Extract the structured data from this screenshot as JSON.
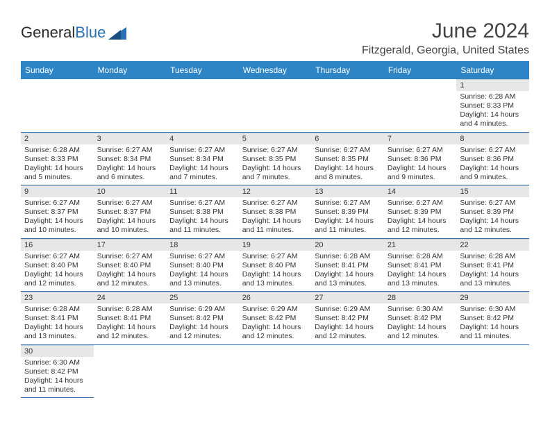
{
  "header": {
    "logo_word1": "General",
    "logo_word2": "Blue",
    "month_title": "June 2024",
    "location": "Fitzgerald, Georgia, United States"
  },
  "colors": {
    "header_bg": "#2d85c5",
    "header_text": "#ffffff",
    "border": "#2d6fb5",
    "daynum_bg": "#e7e7e7",
    "logo_accent": "#2d6fb5",
    "page_bg": "#ffffff",
    "text": "#333333"
  },
  "calendar": {
    "day_headers": [
      "Sunday",
      "Monday",
      "Tuesday",
      "Wednesday",
      "Thursday",
      "Friday",
      "Saturday"
    ],
    "weeks": [
      [
        {
          "n": "",
          "lines": []
        },
        {
          "n": "",
          "lines": []
        },
        {
          "n": "",
          "lines": []
        },
        {
          "n": "",
          "lines": []
        },
        {
          "n": "",
          "lines": []
        },
        {
          "n": "",
          "lines": []
        },
        {
          "n": "1",
          "lines": [
            "Sunrise: 6:28 AM",
            "Sunset: 8:33 PM",
            "Daylight: 14 hours and 4 minutes."
          ]
        }
      ],
      [
        {
          "n": "2",
          "lines": [
            "Sunrise: 6:28 AM",
            "Sunset: 8:33 PM",
            "Daylight: 14 hours and 5 minutes."
          ]
        },
        {
          "n": "3",
          "lines": [
            "Sunrise: 6:27 AM",
            "Sunset: 8:34 PM",
            "Daylight: 14 hours and 6 minutes."
          ]
        },
        {
          "n": "4",
          "lines": [
            "Sunrise: 6:27 AM",
            "Sunset: 8:34 PM",
            "Daylight: 14 hours and 7 minutes."
          ]
        },
        {
          "n": "5",
          "lines": [
            "Sunrise: 6:27 AM",
            "Sunset: 8:35 PM",
            "Daylight: 14 hours and 7 minutes."
          ]
        },
        {
          "n": "6",
          "lines": [
            "Sunrise: 6:27 AM",
            "Sunset: 8:35 PM",
            "Daylight: 14 hours and 8 minutes."
          ]
        },
        {
          "n": "7",
          "lines": [
            "Sunrise: 6:27 AM",
            "Sunset: 8:36 PM",
            "Daylight: 14 hours and 9 minutes."
          ]
        },
        {
          "n": "8",
          "lines": [
            "Sunrise: 6:27 AM",
            "Sunset: 8:36 PM",
            "Daylight: 14 hours and 9 minutes."
          ]
        }
      ],
      [
        {
          "n": "9",
          "lines": [
            "Sunrise: 6:27 AM",
            "Sunset: 8:37 PM",
            "Daylight: 14 hours and 10 minutes."
          ]
        },
        {
          "n": "10",
          "lines": [
            "Sunrise: 6:27 AM",
            "Sunset: 8:37 PM",
            "Daylight: 14 hours and 10 minutes."
          ]
        },
        {
          "n": "11",
          "lines": [
            "Sunrise: 6:27 AM",
            "Sunset: 8:38 PM",
            "Daylight: 14 hours and 11 minutes."
          ]
        },
        {
          "n": "12",
          "lines": [
            "Sunrise: 6:27 AM",
            "Sunset: 8:38 PM",
            "Daylight: 14 hours and 11 minutes."
          ]
        },
        {
          "n": "13",
          "lines": [
            "Sunrise: 6:27 AM",
            "Sunset: 8:39 PM",
            "Daylight: 14 hours and 11 minutes."
          ]
        },
        {
          "n": "14",
          "lines": [
            "Sunrise: 6:27 AM",
            "Sunset: 8:39 PM",
            "Daylight: 14 hours and 12 minutes."
          ]
        },
        {
          "n": "15",
          "lines": [
            "Sunrise: 6:27 AM",
            "Sunset: 8:39 PM",
            "Daylight: 14 hours and 12 minutes."
          ]
        }
      ],
      [
        {
          "n": "16",
          "lines": [
            "Sunrise: 6:27 AM",
            "Sunset: 8:40 PM",
            "Daylight: 14 hours and 12 minutes."
          ]
        },
        {
          "n": "17",
          "lines": [
            "Sunrise: 6:27 AM",
            "Sunset: 8:40 PM",
            "Daylight: 14 hours and 12 minutes."
          ]
        },
        {
          "n": "18",
          "lines": [
            "Sunrise: 6:27 AM",
            "Sunset: 8:40 PM",
            "Daylight: 14 hours and 13 minutes."
          ]
        },
        {
          "n": "19",
          "lines": [
            "Sunrise: 6:27 AM",
            "Sunset: 8:40 PM",
            "Daylight: 14 hours and 13 minutes."
          ]
        },
        {
          "n": "20",
          "lines": [
            "Sunrise: 6:28 AM",
            "Sunset: 8:41 PM",
            "Daylight: 14 hours and 13 minutes."
          ]
        },
        {
          "n": "21",
          "lines": [
            "Sunrise: 6:28 AM",
            "Sunset: 8:41 PM",
            "Daylight: 14 hours and 13 minutes."
          ]
        },
        {
          "n": "22",
          "lines": [
            "Sunrise: 6:28 AM",
            "Sunset: 8:41 PM",
            "Daylight: 14 hours and 13 minutes."
          ]
        }
      ],
      [
        {
          "n": "23",
          "lines": [
            "Sunrise: 6:28 AM",
            "Sunset: 8:41 PM",
            "Daylight: 14 hours and 13 minutes."
          ]
        },
        {
          "n": "24",
          "lines": [
            "Sunrise: 6:28 AM",
            "Sunset: 8:41 PM",
            "Daylight: 14 hours and 12 minutes."
          ]
        },
        {
          "n": "25",
          "lines": [
            "Sunrise: 6:29 AM",
            "Sunset: 8:42 PM",
            "Daylight: 14 hours and 12 minutes."
          ]
        },
        {
          "n": "26",
          "lines": [
            "Sunrise: 6:29 AM",
            "Sunset: 8:42 PM",
            "Daylight: 14 hours and 12 minutes."
          ]
        },
        {
          "n": "27",
          "lines": [
            "Sunrise: 6:29 AM",
            "Sunset: 8:42 PM",
            "Daylight: 14 hours and 12 minutes."
          ]
        },
        {
          "n": "28",
          "lines": [
            "Sunrise: 6:30 AM",
            "Sunset: 8:42 PM",
            "Daylight: 14 hours and 12 minutes."
          ]
        },
        {
          "n": "29",
          "lines": [
            "Sunrise: 6:30 AM",
            "Sunset: 8:42 PM",
            "Daylight: 14 hours and 11 minutes."
          ]
        }
      ],
      [
        {
          "n": "30",
          "lines": [
            "Sunrise: 6:30 AM",
            "Sunset: 8:42 PM",
            "Daylight: 14 hours and 11 minutes."
          ]
        },
        {
          "n": "",
          "lines": []
        },
        {
          "n": "",
          "lines": []
        },
        {
          "n": "",
          "lines": []
        },
        {
          "n": "",
          "lines": []
        },
        {
          "n": "",
          "lines": []
        },
        {
          "n": "",
          "lines": []
        }
      ]
    ]
  }
}
